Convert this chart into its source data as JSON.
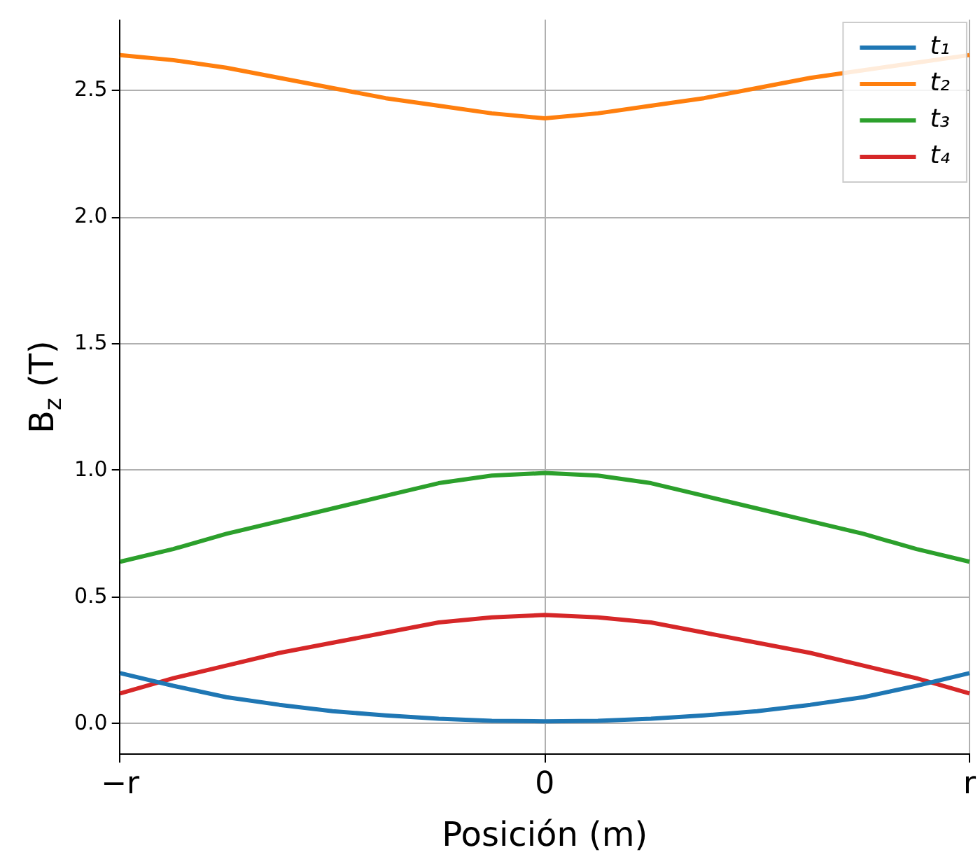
{
  "chart_data": {
    "type": "line",
    "xlabel": "Posición (m)",
    "ylabel": "B$_{z}$ (T)",
    "categories": [
      "−r",
      null,
      null,
      null,
      null,
      null,
      null,
      null,
      "0",
      null,
      null,
      null,
      null,
      null,
      null,
      null,
      "r"
    ],
    "series": [
      {
        "name": "t₁",
        "color": "#1f77b4",
        "values": [
          0.2,
          0.15,
          0.105,
          0.075,
          0.05,
          0.033,
          0.02,
          0.012,
          0.01,
          0.012,
          0.02,
          0.033,
          0.05,
          0.075,
          0.105,
          0.15,
          0.2
        ]
      },
      {
        "name": "t₂",
        "color": "#ff7f0e",
        "values": [
          2.64,
          2.62,
          2.59,
          2.55,
          2.51,
          2.47,
          2.44,
          2.41,
          2.39,
          2.41,
          2.44,
          2.47,
          2.51,
          2.55,
          null,
          null,
          2.64
        ]
      },
      {
        "name": "t₃",
        "color": "#2ca02c",
        "values": [
          0.64,
          0.69,
          0.75,
          0.8,
          0.85,
          0.9,
          0.95,
          0.98,
          0.99,
          0.98,
          0.95,
          0.9,
          0.85,
          0.8,
          0.75,
          0.69,
          0.64
        ]
      },
      {
        "name": "t₄",
        "color": "#d62728",
        "values": [
          0.12,
          0.18,
          0.23,
          0.28,
          0.32,
          0.36,
          0.4,
          0.42,
          0.43,
          0.42,
          0.4,
          0.36,
          0.32,
          0.28,
          0.23,
          0.18,
          0.12
        ]
      }
    ],
    "ylim": [
      -0.12,
      2.78
    ],
    "yticks": [
      {
        "value": 0,
        "label": "0.0"
      },
      0.5,
      {
        "value": 1,
        "label": "1.0"
      },
      1.5,
      {
        "value": 2,
        "label": "2.0"
      },
      2.5
    ],
    "grid": true,
    "legend": "top right",
    "marker": "none",
    "line_style": "solid"
  }
}
